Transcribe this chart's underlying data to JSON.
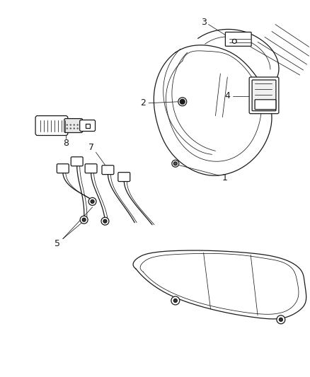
{
  "background_color": "#ffffff",
  "line_color": "#1a1a1a",
  "label_color": "#000000",
  "fig_width": 4.38,
  "fig_height": 5.33,
  "dpi": 100,
  "label_fontsize": 9,
  "lw": 0.9,
  "lw_thin": 0.55,
  "lw_thick": 1.2
}
